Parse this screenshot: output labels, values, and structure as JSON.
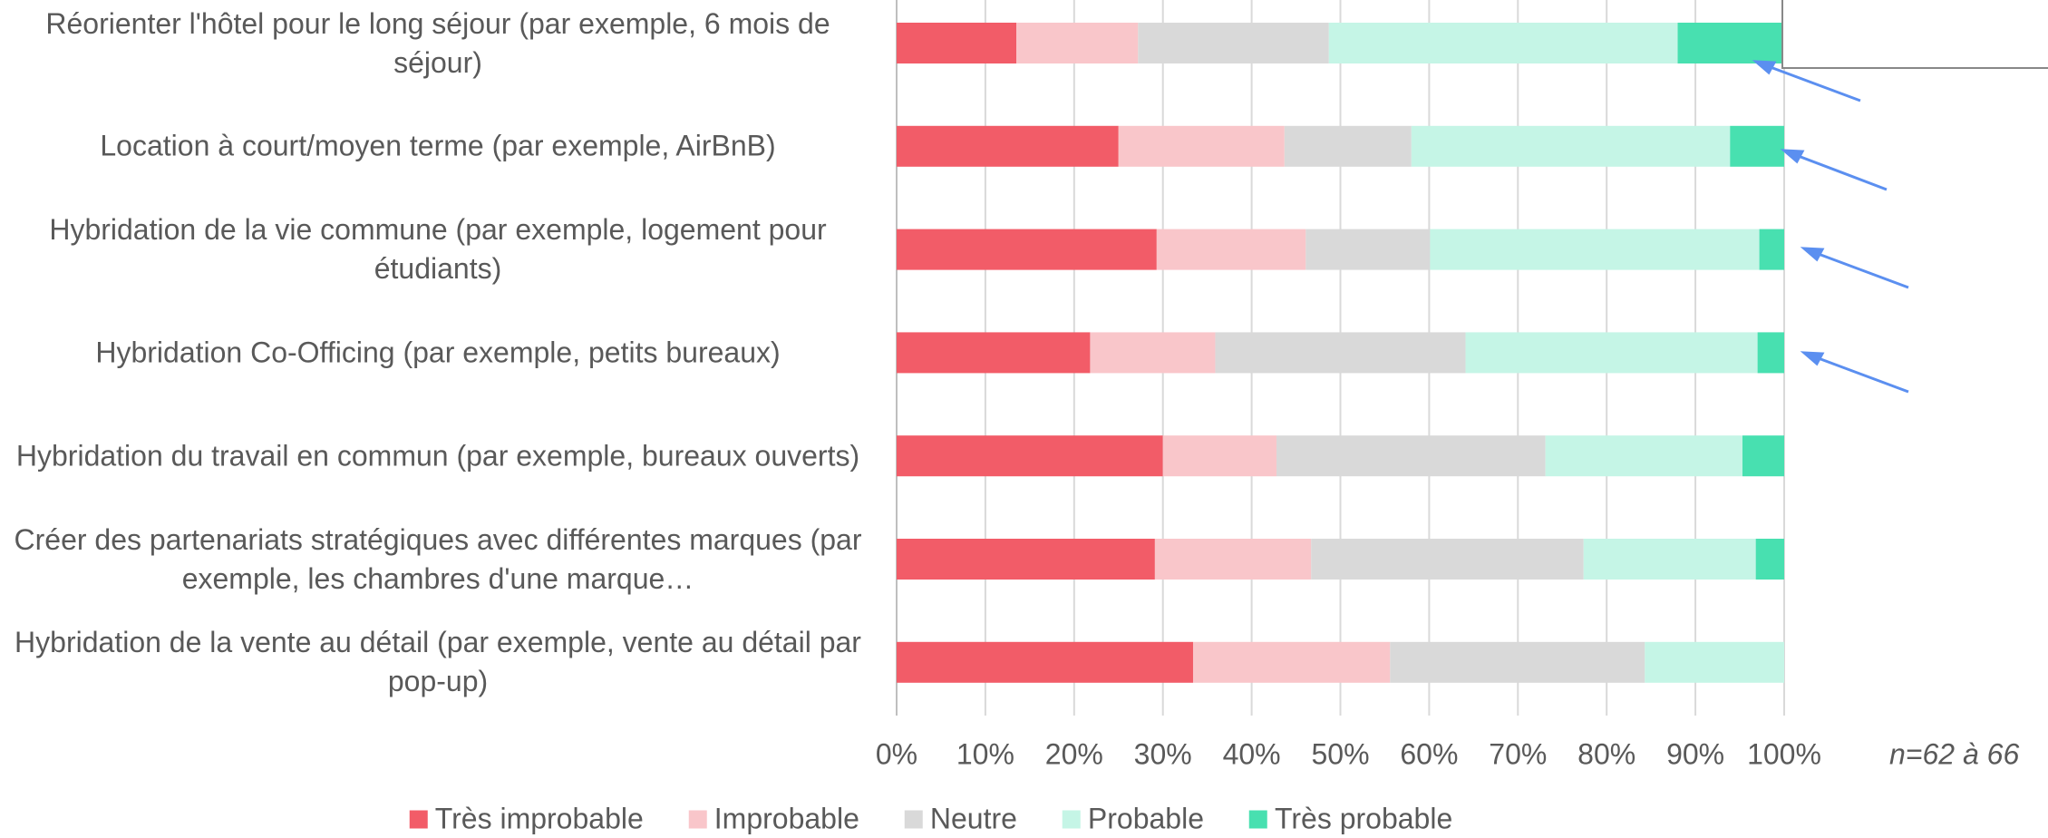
{
  "chart_data": {
    "type": "stacked-bar-horizontal",
    "categories": [
      "Réorienter l'hôtel pour le long séjour (par exemple, 6 mois de séjour)",
      "Location à court/moyen terme (par exemple, AirBnB)",
      "Hybridation de la vie commune (par exemple, logement pour étudiants)",
      "Hybridation Co-Officing (par exemple, petits bureaux)",
      "Hybridation du travail en commun (par exemple, bureaux ouverts)",
      "Créer des partenariats stratégiques avec différentes marques (par exemple, les chambres d'une marque…",
      "Hybridation de la vente au détail (par exemple, vente au détail par pop-up)"
    ],
    "series": [
      {
        "name": "Très improbable",
        "color": "#f25c68",
        "values": [
          13.5,
          25.0,
          29.3,
          21.8,
          30.0,
          29.1,
          33.4
        ]
      },
      {
        "name": "Improbable",
        "color": "#f9c6ca",
        "values": [
          13.7,
          18.7,
          16.8,
          14.1,
          12.8,
          17.6,
          22.2
        ]
      },
      {
        "name": "Neutre",
        "color": "#d9d9d9",
        "values": [
          21.5,
          14.3,
          14.0,
          28.2,
          30.3,
          30.7,
          28.7
        ]
      },
      {
        "name": "Probable",
        "color": "#c5f5e6",
        "values": [
          39.3,
          35.9,
          37.1,
          32.9,
          22.2,
          19.4,
          15.7
        ]
      },
      {
        "name": "Très probable",
        "color": "#48e0b0",
        "values": [
          12.0,
          6.1,
          2.8,
          3.0,
          4.7,
          3.2,
          0
        ]
      }
    ],
    "xlim": [
      0,
      100
    ],
    "xticks": [
      {
        "value": 0,
        "label": "0%"
      },
      {
        "value": 10,
        "label": "10%"
      },
      {
        "value": 20,
        "label": "20%"
      },
      {
        "value": 30,
        "label": "30%"
      },
      {
        "value": 40,
        "label": "40%"
      },
      {
        "value": 50,
        "label": "50%"
      },
      {
        "value": 60,
        "label": "60%"
      },
      {
        "value": 70,
        "label": "70%"
      },
      {
        "value": 80,
        "label": "80%"
      },
      {
        "value": 90,
        "label": "90%"
      },
      {
        "value": 100,
        "label": "100%"
      }
    ],
    "grid": true,
    "note": "n=62 à 66"
  }
}
